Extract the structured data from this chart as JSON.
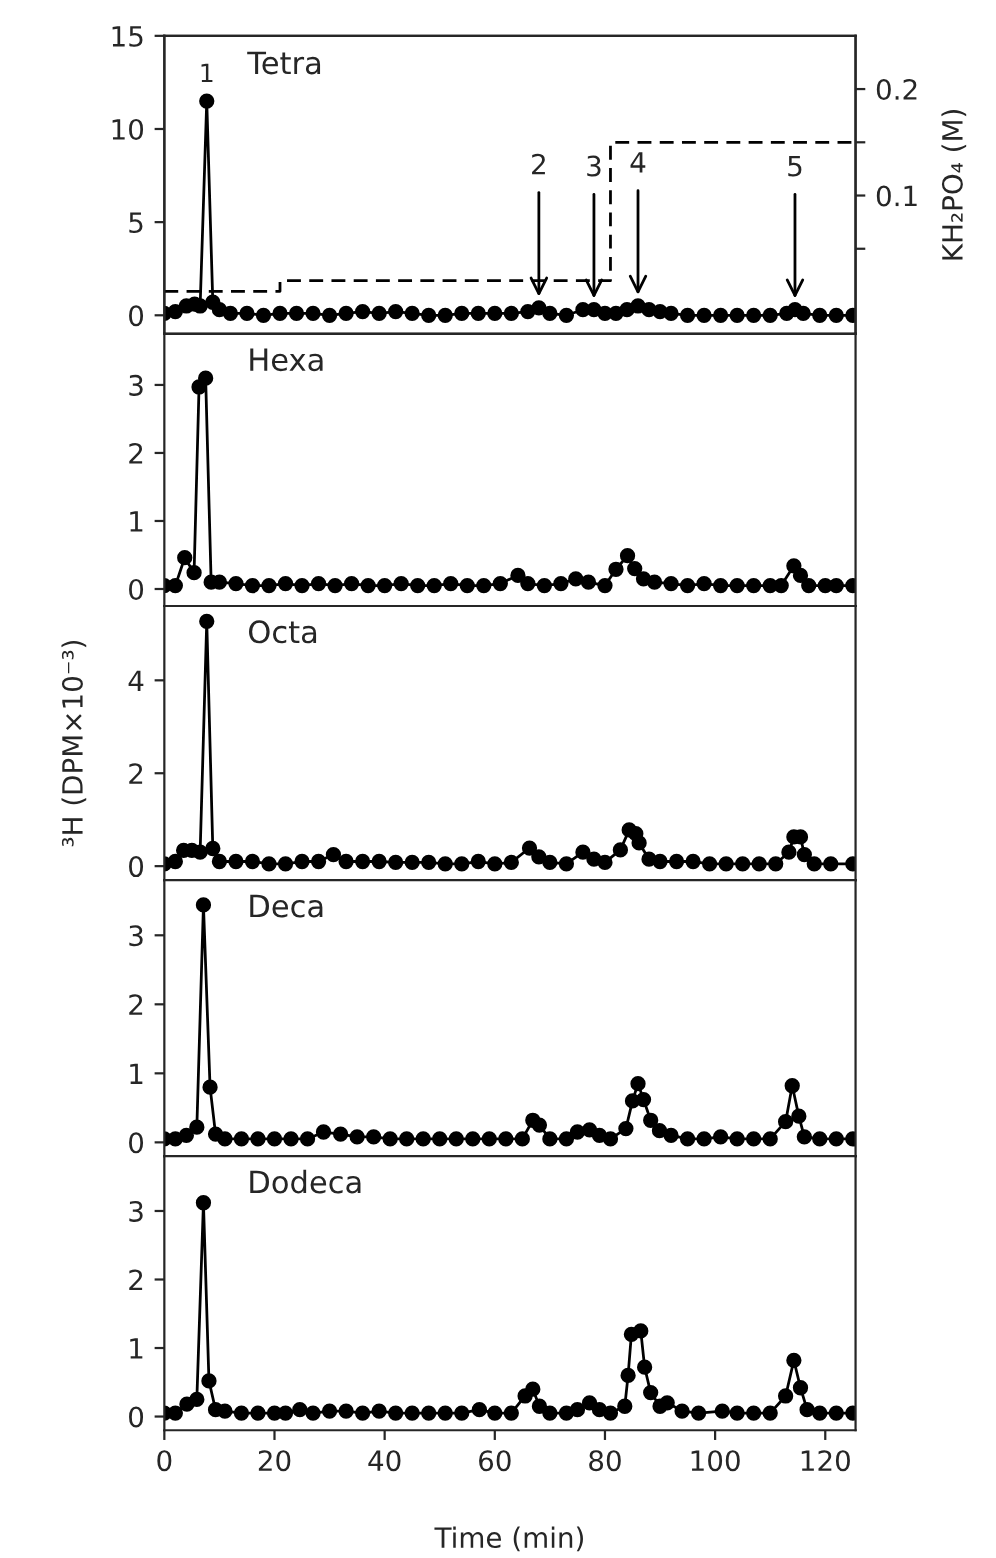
{
  "chart_data": [
    {
      "type": "line",
      "title": "Tetra",
      "xlim": [
        0,
        125.5
      ],
      "ylim": [
        -1,
        15
      ],
      "yticks": [
        0,
        5,
        10,
        15
      ],
      "y2lim": [
        -0.03,
        0.25
      ],
      "y2ticks": [
        {
          "value": 0.05,
          "label": null
        },
        0.1,
        {
          "value": 0.15,
          "label": null
        },
        0.2
      ],
      "y2label": "KH₂PO₄ (M)",
      "tick_labels": "y",
      "marker": "circle",
      "line_style": "solid",
      "grid": false,
      "legend": false,
      "x": [
        0,
        2,
        4,
        5.5,
        6.5,
        7.7,
        8.8,
        10,
        12,
        15,
        18,
        21,
        24,
        27,
        30,
        33,
        36,
        39,
        42,
        45,
        48,
        51,
        54,
        57,
        60,
        63,
        66,
        68,
        70,
        73,
        76,
        78,
        80,
        82,
        84,
        86,
        88,
        90,
        92,
        95,
        98,
        101,
        104,
        107,
        110,
        113,
        114.5,
        116,
        119,
        122,
        125
      ],
      "series": [
        {
          "color": "#000000",
          "values": [
            0.1,
            0.2,
            0.5,
            0.6,
            0.5,
            11.5,
            0.7,
            0.3,
            0.1,
            0.1,
            0.0,
            0.1,
            0.1,
            0.1,
            0.0,
            0.1,
            0.2,
            0.1,
            0.2,
            0.1,
            0.0,
            0.0,
            0.1,
            0.1,
            0.1,
            0.1,
            0.2,
            0.4,
            0.1,
            0.0,
            0.3,
            0.3,
            0.1,
            0.1,
            0.3,
            0.5,
            0.3,
            0.2,
            0.1,
            0.0,
            0.0,
            0.0,
            0.0,
            0.0,
            0.0,
            0.1,
            0.3,
            0.1,
            0.0,
            0.0,
            0.0
          ]
        },
        {
          "type": "step",
          "axis": "y2",
          "color": "#000000",
          "line_style": "dashed",
          "marker": "none",
          "x": [
            0,
            21,
            81,
            125
          ],
          "values": [
            0.01,
            0.02,
            0.15,
            0.15
          ]
        }
      ],
      "annotations": [
        {
          "text": "1",
          "x": 7.7,
          "y": 11.5
        },
        {
          "text": "2",
          "x": 68,
          "y": 0.4
        },
        {
          "text": "3",
          "x": 78,
          "y": 0.3
        },
        {
          "text": "4",
          "x": 86,
          "y": 0.5
        },
        {
          "text": "5",
          "x": 114.5,
          "y": 0.3
        }
      ]
    },
    {
      "type": "line",
      "title": "Hexa",
      "xlim": [
        0,
        125.5
      ],
      "ylim": [
        -0.25,
        3.75
      ],
      "yticks": [
        0,
        1,
        2,
        3
      ],
      "tick_labels": "y",
      "marker": "circle",
      "line_style": "solid",
      "grid": false,
      "legend": false,
      "x": [
        0,
        2,
        3.7,
        5.4,
        6.3,
        7.5,
        8.5,
        10,
        13,
        16,
        19,
        22,
        25,
        28,
        31,
        34,
        37,
        40,
        43,
        46,
        49,
        52,
        55,
        58,
        61,
        64.2,
        66,
        69,
        72,
        74.7,
        77,
        80,
        82,
        84.1,
        85.4,
        87,
        89,
        92,
        95,
        98,
        101,
        104,
        107,
        110,
        112,
        114.3,
        115.5,
        117,
        120,
        122,
        125
      ],
      "series": [
        {
          "color": "#000000",
          "values": [
            0.05,
            0.05,
            0.46,
            0.24,
            2.97,
            3.1,
            0.1,
            0.1,
            0.08,
            0.05,
            0.05,
            0.08,
            0.05,
            0.08,
            0.05,
            0.08,
            0.05,
            0.05,
            0.08,
            0.05,
            0.05,
            0.08,
            0.05,
            0.05,
            0.08,
            0.2,
            0.08,
            0.05,
            0.08,
            0.15,
            0.1,
            0.05,
            0.29,
            0.49,
            0.3,
            0.15,
            0.1,
            0.08,
            0.05,
            0.08,
            0.05,
            0.05,
            0.05,
            0.05,
            0.05,
            0.34,
            0.2,
            0.05,
            0.05,
            0.05,
            0.05
          ]
        }
      ]
    },
    {
      "type": "line",
      "title": "Octa",
      "ylabel": "³H (DPM×10⁻³)",
      "xlim": [
        0,
        125.5
      ],
      "ylim": [
        -0.3,
        5.6
      ],
      "yticks": [
        0,
        2,
        4
      ],
      "tick_labels": "y",
      "marker": "circle",
      "line_style": "solid",
      "grid": false,
      "legend": false,
      "x": [
        0,
        2,
        3.5,
        5,
        6.5,
        7.7,
        8.8,
        10,
        13,
        16,
        19,
        22,
        25,
        28,
        30.7,
        33,
        36,
        39,
        42,
        45,
        48,
        51,
        54,
        57,
        60,
        63,
        66.3,
        68,
        70,
        73,
        76,
        78,
        80,
        82.8,
        84.4,
        85.6,
        86.2,
        88,
        90,
        93,
        96,
        99,
        102,
        105,
        108,
        111,
        113.4,
        114.3,
        115.5,
        116.2,
        118,
        121,
        125
      ],
      "series": [
        {
          "color": "#000000",
          "values": [
            0.05,
            0.1,
            0.34,
            0.34,
            0.3,
            5.27,
            0.38,
            0.1,
            0.1,
            0.1,
            0.05,
            0.05,
            0.1,
            0.1,
            0.25,
            0.1,
            0.1,
            0.1,
            0.08,
            0.08,
            0.08,
            0.05,
            0.05,
            0.1,
            0.05,
            0.08,
            0.39,
            0.2,
            0.08,
            0.05,
            0.3,
            0.15,
            0.08,
            0.35,
            0.78,
            0.7,
            0.5,
            0.15,
            0.1,
            0.1,
            0.1,
            0.05,
            0.05,
            0.05,
            0.05,
            0.05,
            0.3,
            0.63,
            0.63,
            0.25,
            0.05,
            0.05,
            0.05
          ]
        }
      ]
    },
    {
      "type": "line",
      "title": "Deca",
      "xlim": [
        0,
        125.5
      ],
      "ylim": [
        -0.2,
        3.8
      ],
      "yticks": [
        0,
        1,
        2,
        3
      ],
      "tick_labels": "y",
      "marker": "circle",
      "line_style": "solid",
      "grid": false,
      "legend": false,
      "x": [
        0,
        2,
        4,
        5.9,
        7.1,
        8.3,
        9.3,
        11,
        14,
        17,
        20,
        23,
        26,
        28.9,
        32,
        35,
        38,
        41,
        44,
        47,
        50,
        53,
        56,
        59,
        62,
        65,
        66.9,
        68.1,
        70,
        73,
        75,
        77.2,
        79,
        81,
        83.8,
        85,
        86,
        87,
        88.3,
        89.9,
        92,
        95,
        98,
        101,
        104,
        107,
        110,
        112.8,
        114,
        115.2,
        116.2,
        119,
        122,
        125
      ],
      "series": [
        {
          "color": "#000000",
          "values": [
            0.05,
            0.05,
            0.1,
            0.22,
            3.44,
            0.8,
            0.12,
            0.05,
            0.05,
            0.05,
            0.05,
            0.05,
            0.05,
            0.15,
            0.12,
            0.08,
            0.08,
            0.05,
            0.05,
            0.05,
            0.05,
            0.05,
            0.05,
            0.05,
            0.05,
            0.05,
            0.32,
            0.25,
            0.05,
            0.05,
            0.15,
            0.18,
            0.1,
            0.05,
            0.2,
            0.6,
            0.85,
            0.62,
            0.32,
            0.17,
            0.1,
            0.05,
            0.05,
            0.08,
            0.05,
            0.05,
            0.05,
            0.3,
            0.82,
            0.38,
            0.08,
            0.05,
            0.05,
            0.05
          ]
        }
      ]
    },
    {
      "type": "line",
      "title": "Dodeca",
      "xlabel": "Time (min)",
      "xlim": [
        0,
        125.5
      ],
      "xticks": [
        0,
        20,
        40,
        60,
        80,
        100,
        120
      ],
      "ylim": [
        -0.2,
        3.8
      ],
      "yticks": [
        0,
        1,
        2,
        3
      ],
      "marker": "circle",
      "line_style": "solid",
      "grid": false,
      "legend": false,
      "x": [
        0,
        2,
        4.1,
        5.9,
        7.1,
        8.1,
        9.3,
        11,
        14,
        17,
        20,
        22,
        24.6,
        27,
        30,
        33,
        36,
        39,
        42,
        45,
        48,
        51,
        54,
        57.2,
        60,
        63,
        65.5,
        66.9,
        68.1,
        70,
        73,
        75,
        77.2,
        79,
        81,
        83.6,
        84.2,
        84.8,
        86.5,
        87.2,
        88.3,
        90,
        91.3,
        94,
        97,
        101.3,
        104,
        107,
        110,
        112.8,
        114.3,
        115.5,
        116.7,
        119,
        122,
        125
      ],
      "series": [
        {
          "color": "#000000",
          "values": [
            0.05,
            0.05,
            0.18,
            0.25,
            3.12,
            0.52,
            0.1,
            0.08,
            0.05,
            0.05,
            0.05,
            0.05,
            0.1,
            0.05,
            0.08,
            0.08,
            0.05,
            0.08,
            0.05,
            0.05,
            0.05,
            0.05,
            0.05,
            0.1,
            0.05,
            0.05,
            0.3,
            0.4,
            0.15,
            0.05,
            0.05,
            0.1,
            0.2,
            0.1,
            0.05,
            0.15,
            0.6,
            1.2,
            1.25,
            0.72,
            0.35,
            0.15,
            0.2,
            0.08,
            0.05,
            0.08,
            0.05,
            0.05,
            0.05,
            0.3,
            0.82,
            0.42,
            0.1,
            0.05,
            0.05,
            0.05
          ]
        }
      ]
    }
  ]
}
